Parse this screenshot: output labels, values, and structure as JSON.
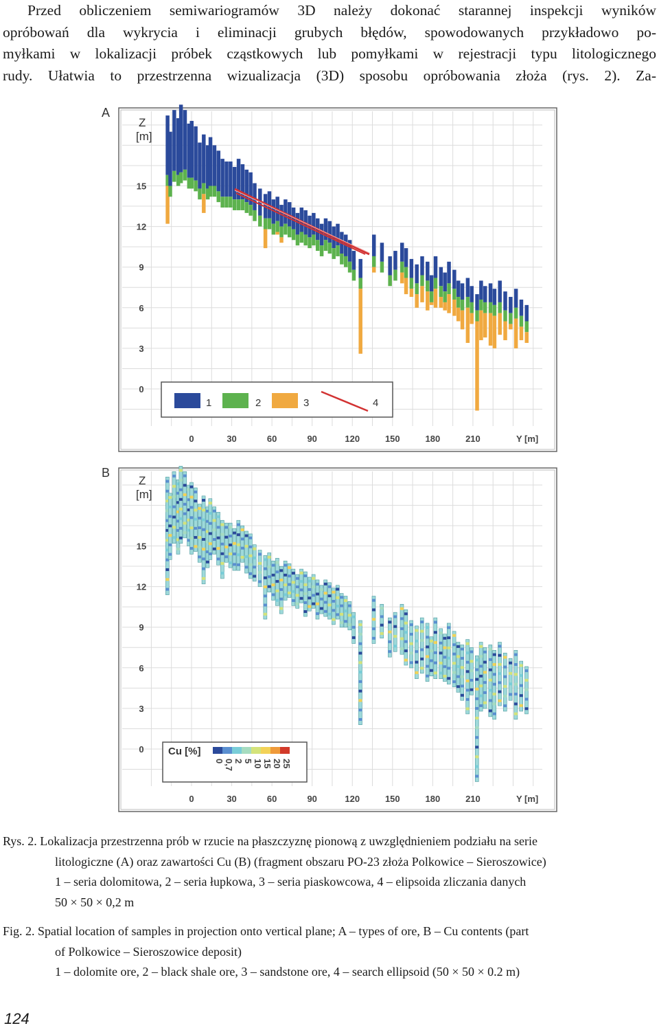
{
  "intro": {
    "line1": "Przed obliczeniem semiwariogramów 3D należy dokonać starannej inspekcji wyników",
    "line2": "opróbowań dla wykrycia i eliminacji grubych błędów, spowodowanych przykładowo po-",
    "line3": "myłkami w lokalizacji próbek cząstkowych lub pomyłkami w rejestracji typu litologicznego",
    "line4": "rudy. Ułatwia to przestrzenna wizualizacja (3D) sposobu opróbowania złoża (rys. 2). Za-"
  },
  "figure": {
    "colors": {
      "dolomite": "#2b4a9b",
      "shale": "#5db24e",
      "sandstone": "#f0a940",
      "ellipse": "#d23232",
      "cu_scale": [
        "#2b4a9b",
        "#5a8fd0",
        "#79cdd8",
        "#a6dcc0",
        "#d4e37a",
        "#f3d257",
        "#ef9a3a",
        "#d23a2a"
      ]
    },
    "panel_a": {
      "label": "A",
      "axis_z_title": "Z",
      "axis_z_unit": "[m]",
      "z_ticks": [
        "15",
        "12",
        "9",
        "6",
        "3",
        "0"
      ],
      "y_ticks": [
        "0",
        "30",
        "60",
        "90",
        "120",
        "150",
        "180",
        "210"
      ],
      "axis_y_title": "Y [m]",
      "legend": [
        "1",
        "2",
        "3",
        "4"
      ],
      "samples": [
        {
          "y": -18,
          "top": 20.2,
          "d": 4.4,
          "bot": 12.2
        },
        {
          "y": -16,
          "top": 19.0,
          "d": 4.0,
          "bot": 14.8
        },
        {
          "y": -13,
          "top": 20.6,
          "d": 4.5,
          "bot": 16.0
        },
        {
          "y": -10,
          "top": 20.0,
          "d": 4.2,
          "bot": 15.2
        },
        {
          "y": -8,
          "top": 21.0,
          "d": 5.0,
          "bot": 16.0
        },
        {
          "y": -5,
          "top": 20.6,
          "d": 4.4,
          "bot": 16.4
        },
        {
          "y": -2,
          "top": 19.6,
          "d": 4.0,
          "bot": 15.8
        },
        {
          "y": 0,
          "top": 19.8,
          "d": 4.2,
          "bot": 15.2
        },
        {
          "y": 3,
          "top": 19.4,
          "d": 4.0,
          "bot": 15.4
        },
        {
          "y": 6,
          "top": 18.2,
          "d": 3.4,
          "bot": 14.6
        },
        {
          "y": 9,
          "top": 18.8,
          "d": 3.6,
          "bot": 13.0
        },
        {
          "y": 12,
          "top": 18.0,
          "d": 3.2,
          "bot": 14.2
        },
        {
          "y": 14,
          "top": 18.6,
          "d": 3.6,
          "bot": 14.8
        },
        {
          "y": 17,
          "top": 18.0,
          "d": 3.0,
          "bot": 15.2
        },
        {
          "y": 20,
          "top": 17.6,
          "d": 3.0,
          "bot": 14.4
        },
        {
          "y": 23,
          "top": 17.0,
          "d": 2.8,
          "bot": 13.4
        },
        {
          "y": 26,
          "top": 16.8,
          "d": 2.6,
          "bot": 14.6
        },
        {
          "y": 29,
          "top": 16.8,
          "d": 2.6,
          "bot": 14.2
        },
        {
          "y": 32,
          "top": 16.4,
          "d": 2.4,
          "bot": 14.0
        },
        {
          "y": 35,
          "top": 17.0,
          "d": 3.0,
          "bot": 14.0
        },
        {
          "y": 38,
          "top": 16.6,
          "d": 2.6,
          "bot": 14.6
        },
        {
          "y": 41,
          "top": 16.2,
          "d": 2.4,
          "bot": 13.8
        },
        {
          "y": 44,
          "top": 16.0,
          "d": 2.4,
          "bot": 13.4
        },
        {
          "y": 47,
          "top": 15.2,
          "d": 2.0,
          "bot": 13.2
        },
        {
          "y": 51,
          "top": 14.8,
          "d": 2.0,
          "bot": 12.8
        },
        {
          "y": 55,
          "top": 14.4,
          "d": 1.8,
          "bot": 10.4
        },
        {
          "y": 58,
          "top": 14.6,
          "d": 2.0,
          "bot": 12.4
        },
        {
          "y": 61,
          "top": 14.0,
          "d": 1.8,
          "bot": 11.8
        },
        {
          "y": 64,
          "top": 14.2,
          "d": 1.8,
          "bot": 11.4
        },
        {
          "y": 67,
          "top": 13.6,
          "d": 1.6,
          "bot": 10.8
        },
        {
          "y": 70,
          "top": 14.0,
          "d": 1.8,
          "bot": 11.8
        },
        {
          "y": 73,
          "top": 13.8,
          "d": 1.8,
          "bot": 12.0
        },
        {
          "y": 76,
          "top": 13.4,
          "d": 1.6,
          "bot": 11.4
        },
        {
          "y": 79,
          "top": 13.0,
          "d": 1.6,
          "bot": 11.2
        },
        {
          "y": 82,
          "top": 13.4,
          "d": 1.8,
          "bot": 11.6
        },
        {
          "y": 85,
          "top": 13.2,
          "d": 1.8,
          "bot": 10.6
        },
        {
          "y": 88,
          "top": 12.8,
          "d": 1.6,
          "bot": 11.0
        },
        {
          "y": 91,
          "top": 13.0,
          "d": 1.6,
          "bot": 11.2
        },
        {
          "y": 94,
          "top": 12.6,
          "d": 1.6,
          "bot": 10.4
        },
        {
          "y": 97,
          "top": 12.2,
          "d": 1.6,
          "bot": 10.8
        },
        {
          "y": 100,
          "top": 12.6,
          "d": 1.6,
          "bot": 10.6
        },
        {
          "y": 103,
          "top": 12.4,
          "d": 1.6,
          "bot": 10.4
        },
        {
          "y": 106,
          "top": 12.0,
          "d": 1.6,
          "bot": 10.0
        },
        {
          "y": 109,
          "top": 12.2,
          "d": 1.6,
          "bot": 10.4
        },
        {
          "y": 112,
          "top": 11.6,
          "d": 1.6,
          "bot": 9.8
        },
        {
          "y": 115,
          "top": 11.4,
          "d": 1.6,
          "bot": 9.8
        },
        {
          "y": 118,
          "top": 11.0,
          "d": 1.6,
          "bot": 9.6
        },
        {
          "y": 121,
          "top": 10.2,
          "d": 1.4,
          "bot": 8.6
        },
        {
          "y": 126,
          "top": 9.6,
          "d": 1.4,
          "bot": 2.6
        },
        {
          "y": 136,
          "top": 11.4,
          "d": 1.6,
          "bot": 8.6
        },
        {
          "y": 142,
          "top": 10.8,
          "d": 1.4,
          "bot": 9.0
        },
        {
          "y": 148,
          "top": 9.8,
          "d": 1.4,
          "bot": 7.6
        },
        {
          "y": 152,
          "top": 10.2,
          "d": 1.4,
          "bot": 8.0
        },
        {
          "y": 157,
          "top": 10.8,
          "d": 1.4,
          "bot": 7.8
        },
        {
          "y": 160,
          "top": 10.4,
          "d": 1.4,
          "bot": 7.0
        },
        {
          "y": 164,
          "top": 9.6,
          "d": 1.4,
          "bot": 6.8
        },
        {
          "y": 168,
          "top": 9.2,
          "d": 1.4,
          "bot": 6.0
        },
        {
          "y": 172,
          "top": 9.8,
          "d": 1.4,
          "bot": 6.4
        },
        {
          "y": 176,
          "top": 9.4,
          "d": 1.4,
          "bot": 5.8
        },
        {
          "y": 179,
          "top": 8.4,
          "d": 1.2,
          "bot": 6.2
        },
        {
          "y": 182,
          "top": 9.8,
          "d": 1.6,
          "bot": 6.0
        },
        {
          "y": 186,
          "top": 9.0,
          "d": 1.4,
          "bot": 6.0
        },
        {
          "y": 189,
          "top": 8.6,
          "d": 1.4,
          "bot": 5.8
        },
        {
          "y": 192,
          "top": 9.4,
          "d": 1.6,
          "bot": 5.6
        },
        {
          "y": 196,
          "top": 8.8,
          "d": 1.4,
          "bot": 5.4
        },
        {
          "y": 199,
          "top": 8.0,
          "d": 1.2,
          "bot": 5.0
        },
        {
          "y": 202,
          "top": 7.8,
          "d": 1.2,
          "bot": 4.4
        },
        {
          "y": 206,
          "top": 8.2,
          "d": 1.4,
          "bot": 3.4
        },
        {
          "y": 209,
          "top": 7.6,
          "d": 1.2,
          "bot": 4.8
        },
        {
          "y": 213,
          "top": 7.0,
          "d": 1.2,
          "bot": -1.6
        },
        {
          "y": 216,
          "top": 8.0,
          "d": 1.4,
          "bot": 3.6
        },
        {
          "y": 219,
          "top": 7.6,
          "d": 1.2,
          "bot": 3.8
        },
        {
          "y": 223,
          "top": 7.8,
          "d": 1.4,
          "bot": 3.2
        },
        {
          "y": 226,
          "top": 7.4,
          "d": 1.2,
          "bot": 3.0
        },
        {
          "y": 230,
          "top": 8.0,
          "d": 1.6,
          "bot": 4.0
        },
        {
          "y": 234,
          "top": 7.2,
          "d": 1.4,
          "bot": 3.6
        },
        {
          "y": 238,
          "top": 6.8,
          "d": 1.2,
          "bot": 4.4
        },
        {
          "y": 242,
          "top": 7.4,
          "d": 1.4,
          "bot": 3.0
        },
        {
          "y": 246,
          "top": 6.6,
          "d": 1.2,
          "bot": 3.6
        },
        {
          "y": 250,
          "top": 6.2,
          "d": 1.2,
          "bot": 3.4
        }
      ]
    },
    "panel_b": {
      "label": "B",
      "axis_z_title": "Z",
      "axis_z_unit": "[m]",
      "z_ticks": [
        "15",
        "12",
        "9",
        "6",
        "3",
        "0"
      ],
      "y_ticks": [
        "0",
        "30",
        "60",
        "90",
        "120",
        "150",
        "180",
        "210"
      ],
      "axis_y_title": "Y [m]",
      "legend_title": "Cu [%]",
      "legend_ticks": [
        "0",
        "0,7",
        "2",
        "5",
        "10",
        "15",
        "20",
        "25"
      ]
    }
  },
  "caption": {
    "pl_lead": "Rys. 2. Lokalizacja przestrzenna prób w rzucie na płaszczyznę pionową z uwzględnieniem podziału na serie",
    "pl_line2": "litologiczne (A) oraz zawartości Cu (B) (fragment obszaru PO-23 złoża Polkowice – Sieroszowice)",
    "pl_line3": "1 – seria dolomitowa, 2 – seria łupkowa, 3 – seria piaskowcowa, 4 – elipsoida zliczania danych",
    "pl_line4": "50 × 50 × 0,2 m",
    "en_lead": "Fig. 2. Spatial location of samples in projection onto vertical plane; A – types of ore, B – Cu contents (part",
    "en_line2": "of Polkowice – Sieroszowice deposit)",
    "en_line3": "1 – dolomite ore, 2 – black shale ore, 3 – sandstone ore, 4 – search ellipsoid (50 × 50 × 0.2 m)"
  },
  "page_number": "124"
}
